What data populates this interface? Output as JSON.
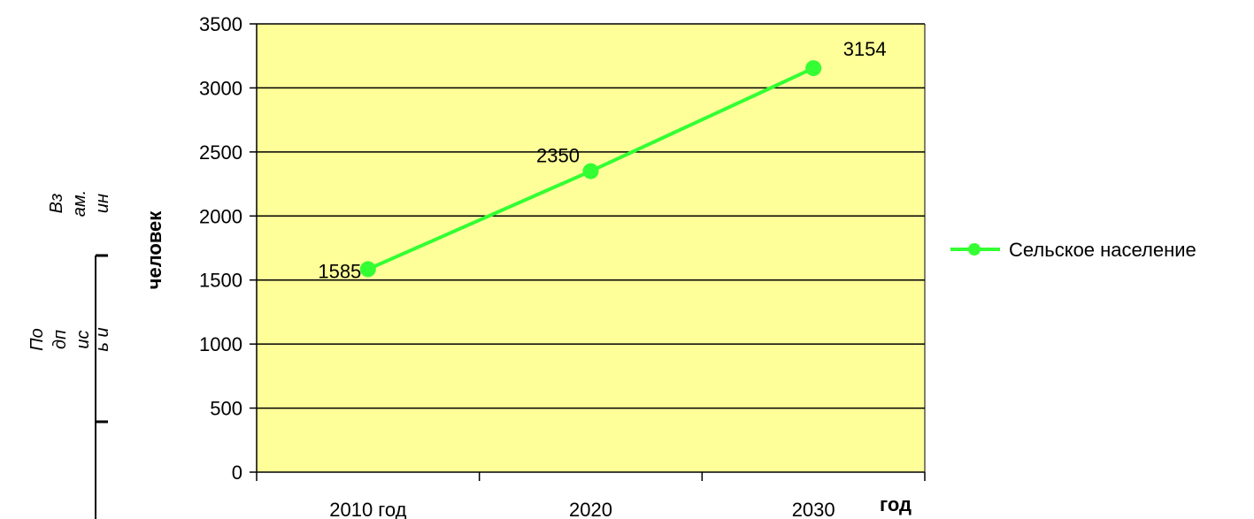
{
  "chart_data": {
    "type": "line",
    "categories": [
      "2010 год",
      "2020",
      "2030"
    ],
    "series": [
      {
        "name": "Сельское население",
        "values": [
          1585,
          2350,
          3154
        ],
        "color": "#33ff33"
      }
    ],
    "xlabel": "год",
    "ylabel": "человек",
    "ylim": [
      0,
      3500
    ],
    "y_ticks": [
      "0",
      "500",
      "1000",
      "1500",
      "2000",
      "2500",
      "3000",
      "3500"
    ],
    "data_labels": [
      "1585",
      "2350",
      "3154"
    ],
    "plot_background": "#ffff99",
    "grid": true,
    "legend_position": "right"
  },
  "stamp": {
    "block1": [
      "Вз",
      "ам.",
      "ин"
    ],
    "block2": [
      "По",
      "дп",
      "ис",
      "ь и"
    ]
  }
}
